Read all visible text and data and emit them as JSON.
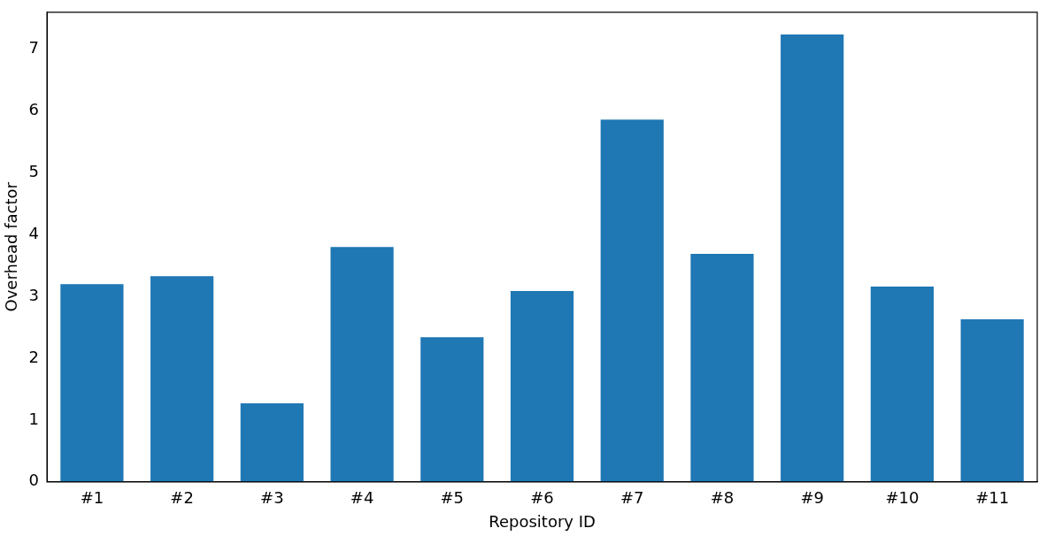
{
  "chart_data": {
    "type": "bar",
    "xlabel": "Repository ID",
    "ylabel": "Overhead factor",
    "categories": [
      "#1",
      "#2",
      "#3",
      "#4",
      "#5",
      "#6",
      "#7",
      "#8",
      "#9",
      "#10",
      "#11"
    ],
    "values": [
      3.2,
      3.33,
      1.27,
      3.8,
      2.34,
      3.09,
      5.86,
      3.69,
      7.24,
      3.16,
      2.63
    ],
    "color": "#1f77b4",
    "ylim": [
      0,
      7.6
    ],
    "yticks": [
      0,
      1,
      2,
      3,
      4,
      5,
      6,
      7
    ],
    "grid": false,
    "legend": false
  }
}
